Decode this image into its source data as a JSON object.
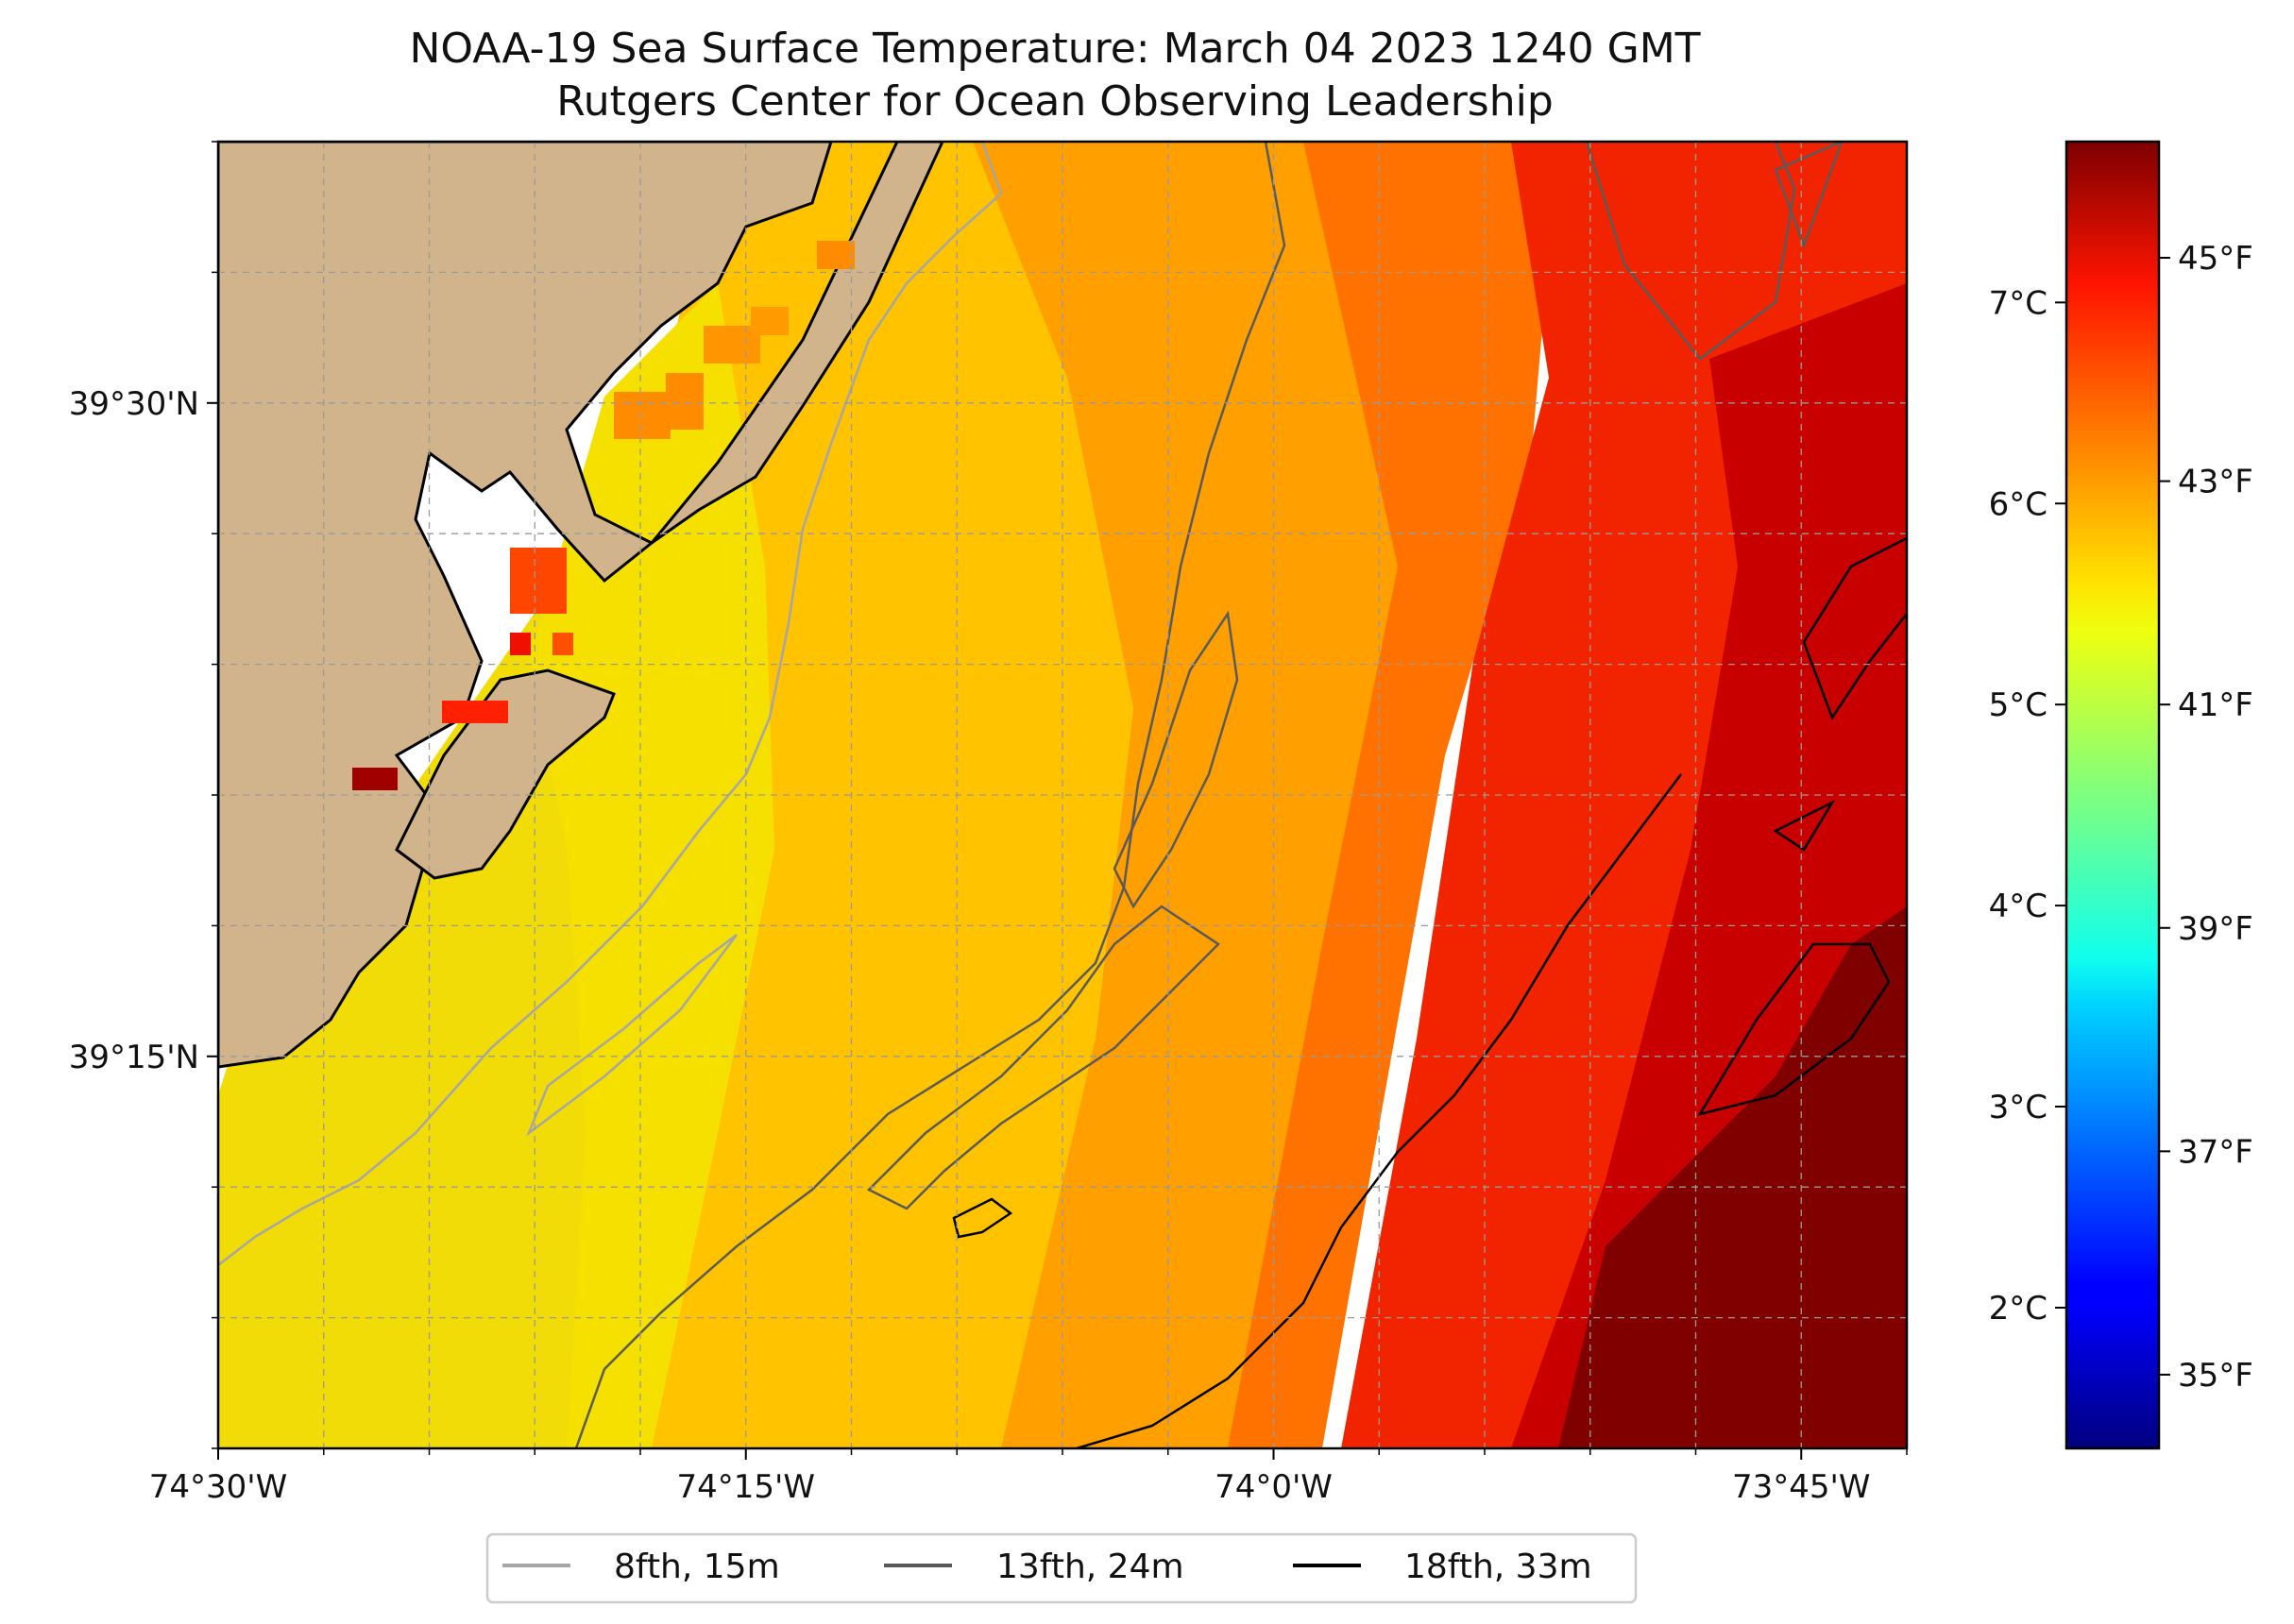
{
  "title": {
    "line1": "NOAA-19 Sea Surface Temperature: March 04 2023 1240 GMT",
    "line2": "Rutgers Center for Ocean Observing Leadership"
  },
  "map": {
    "lon_range": [
      -74.5,
      -73.7
    ],
    "lat_range": [
      39.1,
      39.6
    ],
    "lon_ticks": [
      {
        "value": -74.5,
        "label": "74°30'W"
      },
      {
        "value": -74.25,
        "label": "74°15'W"
      },
      {
        "value": -74.0,
        "label": "74°0'W"
      },
      {
        "value": -73.75,
        "label": "73°45'W"
      }
    ],
    "lat_ticks": [
      {
        "value": 39.5,
        "label": "39°30'N"
      },
      {
        "value": 39.25,
        "label": "39°15'N"
      }
    ],
    "gridlines": true,
    "land_color": "#d2b48c",
    "colormap": "jet"
  },
  "colorbar": {
    "range_c": [
      1.3,
      7.8
    ],
    "celsius_ticks": [
      {
        "value": 2,
        "label": "2°C"
      },
      {
        "value": 3,
        "label": "3°C"
      },
      {
        "value": 4,
        "label": "4°C"
      },
      {
        "value": 5,
        "label": "5°C"
      },
      {
        "value": 6,
        "label": "6°C"
      },
      {
        "value": 7,
        "label": "7°C"
      }
    ],
    "fahrenheit_ticks": [
      {
        "value": 35,
        "label": "35°F"
      },
      {
        "value": 37,
        "label": "37°F"
      },
      {
        "value": 39,
        "label": "39°F"
      },
      {
        "value": 41,
        "label": "41°F"
      },
      {
        "value": 43,
        "label": "43°F"
      },
      {
        "value": 45,
        "label": "45°F"
      }
    ]
  },
  "legend": {
    "placement": "bottom-center",
    "items": [
      {
        "label": "8fth, 15m",
        "color": "#a6a6a6"
      },
      {
        "label": "13fth, 24m",
        "color": "#5a5a5a"
      },
      {
        "label": "18fth, 33m",
        "color": "#000000"
      }
    ]
  }
}
